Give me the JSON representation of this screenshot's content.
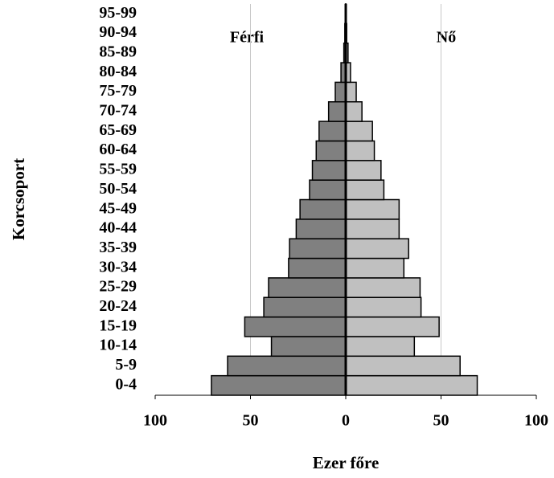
{
  "chart_data": {
    "type": "pyramid",
    "annotations": [
      "Férfi",
      "Nő"
    ],
    "xlabel": "Ezer főre",
    "ylabel": "Korcsoport",
    "categories": [
      "0-4",
      "5-9",
      "10-14",
      "15-19",
      "20-24",
      "25-29",
      "30-34",
      "35-39",
      "40-44",
      "45-49",
      "50-54",
      "55-59",
      "60-64",
      "65-69",
      "70-74",
      "75-79",
      "80-84",
      "85-89",
      "90-94",
      "95-99"
    ],
    "series": [
      {
        "name": "Férfi",
        "side": "left",
        "color": "#808080",
        "values": [
          70.5,
          62,
          39,
          53,
          43,
          40.5,
          30,
          29.5,
          26,
          24,
          19,
          17.5,
          15.5,
          14,
          9,
          5.5,
          2.5,
          1,
          0.5,
          0.2
        ]
      },
      {
        "name": "Nő",
        "side": "right",
        "color": "#c0c0c0",
        "values": [
          69,
          60,
          36,
          49,
          39.5,
          39,
          30.5,
          33,
          28,
          28,
          20,
          18.5,
          15,
          14,
          8.5,
          5.5,
          2.5,
          1.2,
          0.5,
          0.2
        ]
      }
    ],
    "xlim": [
      -100,
      100
    ],
    "xticks": [
      {
        "value": -100,
        "label": "100"
      },
      {
        "value": -50,
        "label": "50"
      },
      0,
      50,
      100
    ],
    "grid": true
  }
}
